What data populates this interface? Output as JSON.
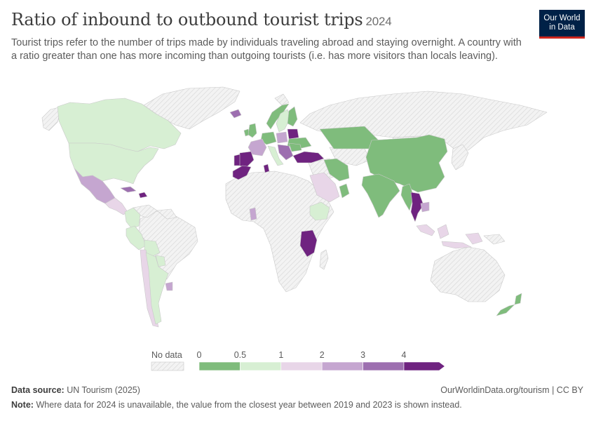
{
  "header": {
    "title": "Ratio of inbound to outbound tourist trips",
    "year": "2024",
    "subtitle": "Tourist trips refer to the number of trips made by individuals traveling abroad and staying overnight. A country with a ratio greater than one has more incoming than outgoing tourists (i.e. has more visitors than locals leaving).",
    "logo_line1": "Our World",
    "logo_line2": "in Data"
  },
  "legend": {
    "no_data_label": "No data",
    "ticks": [
      "0",
      "0.5",
      "1",
      "2",
      "3",
      "4"
    ],
    "bin_colors": [
      "#7fbc7c",
      "#d7efd3",
      "#e8d6e8",
      "#c5a6d0",
      "#9d6fb0",
      "#6f2380"
    ]
  },
  "colors": {
    "no_data_fill": "#f3f3f3",
    "no_data_hatch": "#d9d9d9",
    "border": "#c9c9c9",
    "title": "#3d3d3d",
    "text": "#5b5b5b",
    "logo_bg": "#002147",
    "logo_accent": "#ce261e"
  },
  "footer": {
    "source_label": "Data source:",
    "source_text": "UN Tourism (2025)",
    "url": "OurWorldinData.org/tourism | CC BY",
    "note_label": "Note:",
    "note_text": "Where data for 2024 is unavailable, the value from the closest year between 2019 and 2023 is shown instead."
  },
  "map_regions": [
    {
      "name": "Canada",
      "bin": 1
    },
    {
      "name": "United States",
      "bin": 1
    },
    {
      "name": "Mexico",
      "bin": 3
    },
    {
      "name": "Central America",
      "bin": 2
    },
    {
      "name": "Cuba",
      "bin": 4
    },
    {
      "name": "Dominican Republic",
      "bin": 5
    },
    {
      "name": "Colombia",
      "bin": 1
    },
    {
      "name": "Peru",
      "bin": 1
    },
    {
      "name": "Bolivia",
      "bin": 1
    },
    {
      "name": "Chile",
      "bin": 2
    },
    {
      "name": "Argentina",
      "bin": 1
    },
    {
      "name": "Paraguay",
      "bin": 1
    },
    {
      "name": "Uruguay",
      "bin": 3
    },
    {
      "name": "Iceland",
      "bin": 4
    },
    {
      "name": "Ireland",
      "bin": 0
    },
    {
      "name": "United Kingdom",
      "bin": 0
    },
    {
      "name": "Norway",
      "bin": 0
    },
    {
      "name": "Sweden",
      "bin": 1
    },
    {
      "name": "Finland",
      "bin": 0
    },
    {
      "name": "Germany",
      "bin": 0
    },
    {
      "name": "Poland",
      "bin": 3
    },
    {
      "name": "Belarus",
      "bin": 5
    },
    {
      "name": "Ukraine",
      "bin": 0
    },
    {
      "name": "France",
      "bin": 3
    },
    {
      "name": "Spain",
      "bin": 5
    },
    {
      "name": "Portugal",
      "bin": 5
    },
    {
      "name": "Italy",
      "bin": 1
    },
    {
      "name": "Balkans",
      "bin": 4
    },
    {
      "name": "Romania",
      "bin": 0
    },
    {
      "name": "Turkey",
      "bin": 5
    },
    {
      "name": "Morocco",
      "bin": 5
    },
    {
      "name": "Tunisia",
      "bin": 5
    },
    {
      "name": "Saudi Arabia",
      "bin": 2
    },
    {
      "name": "Iran",
      "bin": 0
    },
    {
      "name": "Oman",
      "bin": 0
    },
    {
      "name": "Ethiopia",
      "bin": 1
    },
    {
      "name": "Tanzania",
      "bin": 5
    },
    {
      "name": "Ghana",
      "bin": 3
    },
    {
      "name": "Kazakhstan",
      "bin": 0
    },
    {
      "name": "China",
      "bin": 0
    },
    {
      "name": "India",
      "bin": 0
    },
    {
      "name": "Myanmar",
      "bin": 0
    },
    {
      "name": "Thailand",
      "bin": 5
    },
    {
      "name": "Cambodia",
      "bin": 3
    },
    {
      "name": "Indonesia",
      "bin": 2
    },
    {
      "name": "New Zealand",
      "bin": 0
    }
  ]
}
